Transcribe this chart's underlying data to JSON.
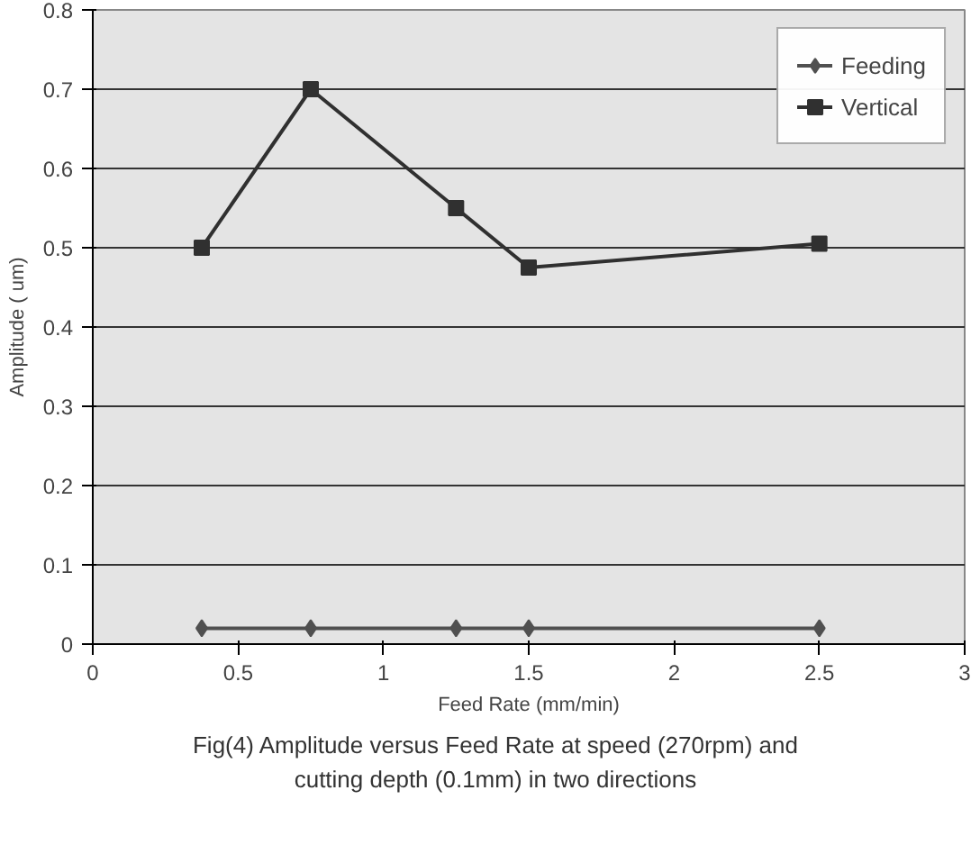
{
  "chart_data": {
    "type": "line",
    "xlabel": "Feed Rate (mm/min)",
    "ylabel": "Amplitude ( um)",
    "x": [
      0.375,
      0.75,
      1.25,
      1.5,
      2.5
    ],
    "series": [
      {
        "name": "Feeding",
        "color": "#505050",
        "marker": "diamond",
        "values": [
          0.02,
          0.02,
          0.02,
          0.02,
          0.02
        ]
      },
      {
        "name": "Vertical",
        "color": "#303030",
        "marker": "square",
        "values": [
          0.5,
          0.7,
          0.55,
          0.475,
          0.505
        ]
      }
    ],
    "xlim": [
      0,
      3
    ],
    "xticks": [
      0,
      0.5,
      1,
      1.5,
      2,
      2.5,
      3
    ],
    "ylim": [
      0,
      0.8
    ],
    "yticks": [
      0,
      0.1,
      0.2,
      0.3,
      0.4,
      0.5,
      0.6,
      0.7,
      0.8
    ],
    "grid": "y",
    "legend": "top right",
    "annotations": [
      "Fig(4) Amplitude versus Feed Rate at speed (270rpm) and cutting depth (0.1mm) in two directions"
    ]
  }
}
